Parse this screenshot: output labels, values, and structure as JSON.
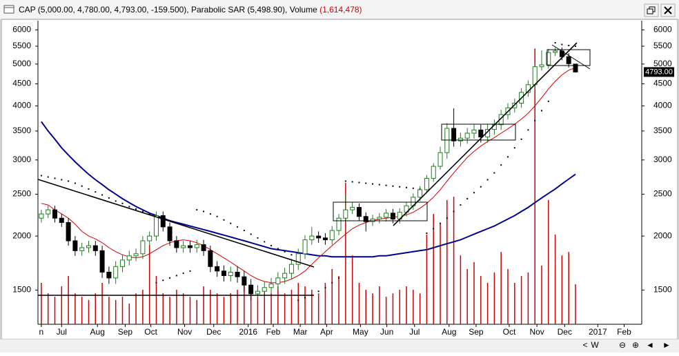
{
  "window": {
    "symbol_label": "CAP (5,000.00, 4,780.00, 4,793.00, -159.500),",
    "sar_label": "Parabolic SAR (5,498.90),",
    "volume_label": "Volume",
    "volume_value": "(1,614,478)",
    "nav_buttons": [
      "<",
      "W",
      "⊖",
      "⊕",
      "◄",
      "►"
    ]
  },
  "chart_data": {
    "type": "candlestick",
    "log_scale": true,
    "ylim": [
      1250,
      6300
    ],
    "yticks": [
      1500,
      2000,
      2500,
      3000,
      3500,
      4000,
      4500,
      5000,
      5500,
      6000
    ],
    "xlim": [
      -0.5,
      88.8
    ],
    "xticks": [
      {
        "value": 0,
        "label": "n"
      },
      {
        "value": 3,
        "label": "Jul"
      },
      {
        "value": 8.3,
        "label": "Aug"
      },
      {
        "value": 12.4,
        "label": "Sep"
      },
      {
        "value": 16.2,
        "label": "Oct"
      },
      {
        "value": 21.2,
        "label": "Nov"
      },
      {
        "value": 25.5,
        "label": "Dec"
      },
      {
        "value": 30.6,
        "label": "2016"
      },
      {
        "value": 34.3,
        "label": "Feb"
      },
      {
        "value": 38.3,
        "label": "Mar"
      },
      {
        "value": 42.2,
        "label": "Apr"
      },
      {
        "value": 47.2,
        "label": "May"
      },
      {
        "value": 51.1,
        "label": "Jun"
      },
      {
        "value": 55.2,
        "label": "Jul"
      },
      {
        "value": 60.3,
        "label": "Aug"
      },
      {
        "value": 64.3,
        "label": "Sep"
      },
      {
        "value": 69.2,
        "label": "Oct"
      },
      {
        "value": 73.3,
        "label": "Nov"
      },
      {
        "value": 77.4,
        "label": "Dec"
      },
      {
        "value": 82.3,
        "label": "2017"
      },
      {
        "value": 86.2,
        "label": "Feb"
      }
    ],
    "open": [
      2200,
      2250,
      2300,
      2200,
      2150,
      1950,
      1850,
      1880,
      1900,
      1850,
      1650,
      1600,
      1700,
      1760,
      1800,
      1820,
      1950,
      2000,
      2230,
      2100,
      1950,
      1880,
      1900,
      1880,
      1910,
      1850,
      1700,
      1660,
      1620,
      1650,
      1610,
      1540,
      1470,
      1490,
      1520,
      1550,
      1600,
      1640,
      1720,
      1820,
      1960,
      2000,
      1980,
      1960,
      2060,
      2200,
      2300,
      2330,
      2220,
      2160,
      2190,
      2210,
      2260,
      2190,
      2270,
      2350,
      2460,
      2560,
      2720,
      2900,
      3120,
      3550,
      3320,
      3370,
      3460,
      3520,
      3390,
      3530,
      3620,
      3820,
      3960,
      4060,
      4300,
      4480,
      4930,
      4980,
      5320,
      5360,
      5200,
      5000
    ],
    "high": [
      2300,
      2350,
      2350,
      2250,
      2200,
      2000,
      1930,
      1950,
      1950,
      1900,
      1700,
      1750,
      1810,
      1850,
      1870,
      2000,
      2050,
      2280,
      2280,
      2150,
      2000,
      1950,
      1950,
      1960,
      1960,
      1900,
      1750,
      1710,
      1700,
      1700,
      1660,
      1590,
      1540,
      1570,
      1600,
      1650,
      1690,
      1770,
      1870,
      2010,
      2100,
      2050,
      2030,
      2110,
      2250,
      2500,
      2400,
      2380,
      2270,
      2240,
      2260,
      2310,
      2310,
      2320,
      2400,
      2510,
      2610,
      2770,
      2950,
      3220,
      3650,
      3950,
      3470,
      3560,
      3620,
      3620,
      3630,
      3720,
      3920,
      4060,
      4160,
      4400,
      4580,
      5030,
      5380,
      5420,
      5460,
      5460,
      5300,
      5000
    ],
    "low": [
      2150,
      2200,
      2150,
      2100,
      1900,
      1800,
      1800,
      1830,
      1800,
      1600,
      1550,
      1550,
      1650,
      1710,
      1750,
      1770,
      1900,
      1950,
      2050,
      1900,
      1830,
      1830,
      1830,
      1830,
      1800,
      1650,
      1610,
      1570,
      1570,
      1560,
      1490,
      1420,
      1420,
      1440,
      1470,
      1500,
      1550,
      1590,
      1670,
      1770,
      1910,
      1930,
      1910,
      1910,
      2010,
      2150,
      2250,
      2170,
      2050,
      2110,
      2140,
      2160,
      2140,
      2140,
      2220,
      2300,
      2410,
      2510,
      2670,
      2850,
      3020,
      3220,
      3220,
      3270,
      3360,
      3290,
      3290,
      3430,
      3520,
      3720,
      3860,
      3960,
      4200,
      4380,
      4830,
      4880,
      5220,
      5100,
      4910,
      4780
    ],
    "close": [
      2250,
      2300,
      2200,
      2150,
      1950,
      1850,
      1880,
      1900,
      1850,
      1650,
      1600,
      1700,
      1760,
      1800,
      1820,
      1950,
      2000,
      2230,
      2100,
      1950,
      1880,
      1900,
      1880,
      1910,
      1850,
      1700,
      1660,
      1620,
      1650,
      1610,
      1540,
      1470,
      1490,
      1520,
      1550,
      1600,
      1640,
      1720,
      1820,
      1960,
      2000,
      1980,
      1960,
      2060,
      2200,
      2300,
      2330,
      2220,
      2160,
      2190,
      2210,
      2260,
      2190,
      2270,
      2350,
      2460,
      2560,
      2720,
      2900,
      3120,
      3550,
      3320,
      3370,
      3460,
      3520,
      3390,
      3530,
      3620,
      3820,
      3960,
      4060,
      4300,
      4480,
      4930,
      4980,
      5320,
      5360,
      5200,
      5010,
      4793
    ],
    "colors": {
      "up": "#1f7a1f",
      "down": "#000000"
    },
    "ma_short": {
      "color": "#d00000",
      "values": [
        2380,
        2360,
        2300,
        2250,
        2200,
        2130,
        2050,
        2000,
        1970,
        1930,
        1880,
        1840,
        1810,
        1790,
        1780,
        1790,
        1820,
        1860,
        1900,
        1930,
        1950,
        1960,
        1950,
        1930,
        1900,
        1860,
        1820,
        1780,
        1740,
        1700,
        1660,
        1620,
        1590,
        1570,
        1560,
        1560,
        1570,
        1590,
        1620,
        1660,
        1720,
        1780,
        1840,
        1900,
        1960,
        2020,
        2080,
        2120,
        2150,
        2170,
        2190,
        2200,
        2210,
        2220,
        2240,
        2270,
        2320,
        2380,
        2460,
        2560,
        2680,
        2800,
        2920,
        3040,
        3140,
        3230,
        3310,
        3380,
        3460,
        3540,
        3630,
        3730,
        3850,
        4000,
        4180,
        4380,
        4560,
        4720,
        4840,
        4900
      ]
    },
    "ma_long": {
      "color": "#00008b",
      "values": [
        3680,
        3500,
        3350,
        3200,
        3080,
        2970,
        2870,
        2780,
        2700,
        2630,
        2560,
        2500,
        2440,
        2390,
        2340,
        2300,
        2260,
        2230,
        2200,
        2170,
        2150,
        2130,
        2110,
        2090,
        2070,
        2050,
        2030,
        2010,
        1990,
        1970,
        1950,
        1930,
        1910,
        1890,
        1870,
        1860,
        1850,
        1840,
        1830,
        1820,
        1810,
        1800,
        1800,
        1790,
        1790,
        1790,
        1790,
        1790,
        1790,
        1790,
        1800,
        1800,
        1810,
        1820,
        1830,
        1840,
        1850,
        1860,
        1880,
        1900,
        1920,
        1940,
        1960,
        1990,
        2020,
        2050,
        2080,
        2110,
        2150,
        2190,
        2230,
        2280,
        2330,
        2390,
        2450,
        2510,
        2570,
        2640,
        2710,
        2780
      ]
    },
    "sar": {
      "color": "#000000",
      "values": [
        2760,
        2740,
        2720,
        2700,
        2680,
        2650,
        2610,
        2570,
        2530,
        2490,
        2450,
        2410,
        2380,
        2340,
        2310,
        2280,
        2250,
        1560,
        1580,
        1600,
        1620,
        1640,
        1660,
        2300,
        2280,
        2250,
        2220,
        2180,
        2140,
        2100,
        2060,
        2020,
        1980,
        1940,
        1900,
        1870,
        1840,
        1810,
        1420,
        1440,
        1460,
        1490,
        1520,
        1560,
        1600,
        2680,
        2670,
        2660,
        2650,
        2640,
        2630,
        2620,
        2610,
        2600,
        2590,
        2580,
        2570,
        2030,
        2080,
        2140,
        2200,
        2280,
        2360,
        2440,
        2520,
        2600,
        2700,
        2800,
        2920,
        3050,
        3200,
        3350,
        3520,
        3700,
        3900,
        4100,
        5600,
        5550,
        5520,
        5498.9
      ]
    },
    "volume": {
      "color": "#cc0000",
      "vlim": [
        0,
        12250000
      ],
      "values": [
        1670000,
        1250000,
        1110000,
        1530000,
        1950000,
        1250000,
        1110000,
        980000,
        1250000,
        1670000,
        1110000,
        980000,
        1110000,
        840000,
        1250000,
        1390000,
        3200000,
        1950000,
        1250000,
        1110000,
        1390000,
        1250000,
        1110000,
        980000,
        1530000,
        1390000,
        1250000,
        1110000,
        1250000,
        1390000,
        1670000,
        1530000,
        1110000,
        1390000,
        1250000,
        1530000,
        1250000,
        1390000,
        1670000,
        1530000,
        1390000,
        1250000,
        1670000,
        2230000,
        1950000,
        5710000,
        2780000,
        1670000,
        1390000,
        1250000,
        1530000,
        1110000,
        1250000,
        1390000,
        1530000,
        1390000,
        1250000,
        3620000,
        4450000,
        4040000,
        5010000,
        5150000,
        2780000,
        2230000,
        2510000,
        1950000,
        1670000,
        2090000,
        2920000,
        2230000,
        1670000,
        1950000,
        2090000,
        11130000,
        2370000,
        5010000,
        3620000,
        2780000,
        2920000,
        1614478
      ]
    },
    "last_price_label": "4793.00"
  }
}
